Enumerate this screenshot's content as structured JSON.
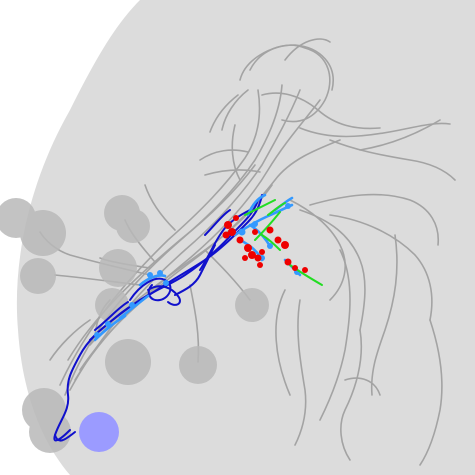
{
  "scene": {
    "background": "#ffffff",
    "volume_fill": "#dcdcdc",
    "soma_fill": "#b9b9b9",
    "highlight_soma_fill": "#9b9bff",
    "neurite_color": "#a3a3a3",
    "axon_color": "#1010cc",
    "dendrite_color": "#3399ff",
    "presynapse_color": "#ee0000",
    "postsynapse_color": "#22dd22"
  }
}
